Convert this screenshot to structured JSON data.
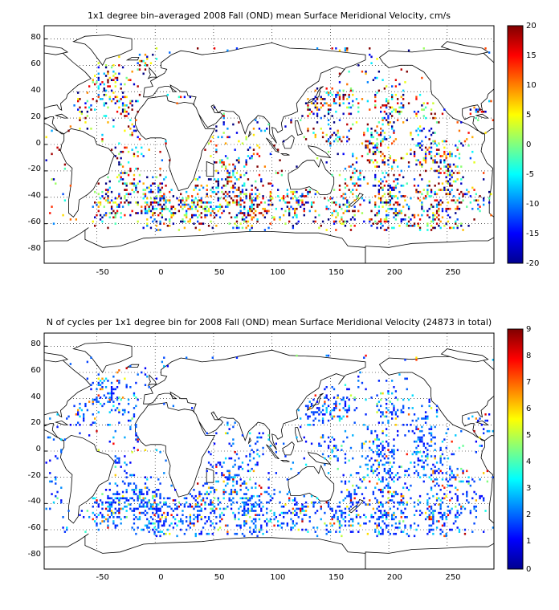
{
  "chart_data": [
    {
      "type": "heatmap",
      "title": "1x1 degree bin–averaged 2008 Fall (OND) mean Surface Meridional Velocity, cm/s",
      "xlabel": "",
      "ylabel": "",
      "xlim": [
        -95,
        290
      ],
      "ylim": [
        -90,
        90
      ],
      "x_ticks": [
        "-50",
        "0",
        "50",
        "100",
        "150",
        "200",
        "250"
      ],
      "y_ticks": [
        "80",
        "60",
        "40",
        "20",
        "0",
        "-20",
        "-40",
        "-60",
        "-80"
      ],
      "colorbar": {
        "range": [
          -20,
          20
        ],
        "ticks": [
          "20",
          "15",
          "10",
          "5",
          "0",
          "-5",
          "-10",
          "-15",
          "-20"
        ],
        "colormap": "jet"
      },
      "grid": true
    },
    {
      "type": "heatmap",
      "title": "N of cycles per 1x1 degree bin for 2008 Fall (OND) mean Surface Meridional Velocity (24873 in total)",
      "xlabel": "",
      "ylabel": "",
      "xlim": [
        -95,
        290
      ],
      "ylim": [
        -90,
        90
      ],
      "x_ticks": [
        "-50",
        "0",
        "50",
        "100",
        "150",
        "200",
        "250"
      ],
      "y_ticks": [
        "80",
        "60",
        "40",
        "20",
        "0",
        "-20",
        "-40",
        "-60",
        "-80"
      ],
      "colorbar": {
        "range": [
          0,
          9
        ],
        "ticks": [
          "9",
          "8",
          "7",
          "6",
          "5",
          "4",
          "3",
          "2",
          "1",
          "0"
        ],
        "colormap": "jet"
      },
      "grid": true
    }
  ]
}
